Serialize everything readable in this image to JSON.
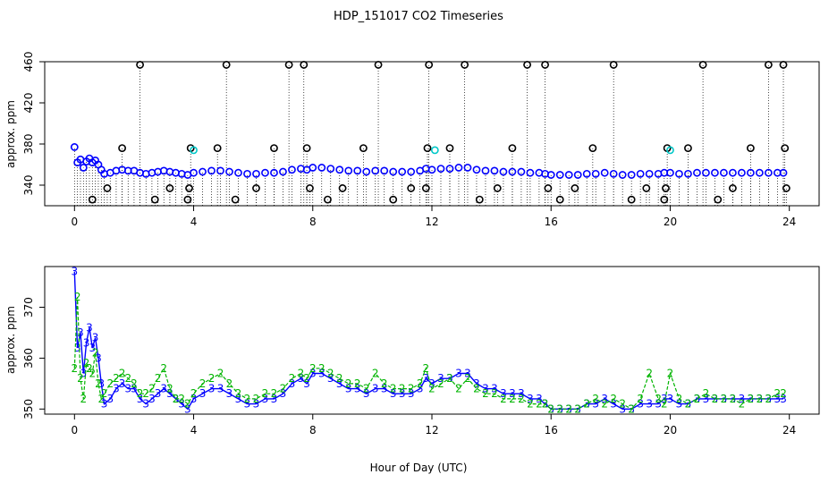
{
  "title": "HDP_151017  CO2 Timeseries",
  "colors": {
    "flagged": "#000000",
    "cyan": "#00c8c8",
    "green": "#00b400",
    "blue": "#0000ff"
  },
  "chart_data": [
    {
      "type": "scatter",
      "title": "HDP_151017  CO2 Timeseries",
      "xlabel": "",
      "ylabel": "approx. ppm",
      "xlim": [
        -1,
        25
      ],
      "ylim": [
        320,
        460
      ],
      "x_ticks": [
        0,
        4,
        8,
        12,
        16,
        20,
        24
      ],
      "y_ticks": [
        340,
        380,
        420,
        460
      ],
      "grid": false,
      "series": [
        {
          "name": "",
          "color": "#0000ff",
          "marker": "circle",
          "x": [
            0.0,
            0.1,
            0.2,
            0.3,
            0.4,
            0.5,
            0.6,
            0.7,
            0.8,
            0.9,
            1.0,
            1.2,
            1.4,
            1.6,
            1.8,
            2.0,
            2.2,
            2.4,
            2.6,
            2.8,
            3.0,
            3.2,
            3.4,
            3.6,
            3.8,
            4.0,
            4.3,
            4.6,
            4.9,
            5.2,
            5.5,
            5.8,
            6.1,
            6.4,
            6.7,
            7.0,
            7.3,
            7.6,
            7.8,
            8.0,
            8.3,
            8.6,
            8.9,
            9.2,
            9.5,
            9.8,
            10.1,
            10.4,
            10.7,
            11.0,
            11.3,
            11.6,
            11.8,
            12.0,
            12.3,
            12.6,
            12.9,
            13.2,
            13.5,
            13.8,
            14.1,
            14.4,
            14.7,
            15.0,
            15.3,
            15.6,
            15.8,
            16.0,
            16.3,
            16.6,
            16.9,
            17.2,
            17.5,
            17.8,
            18.1,
            18.4,
            18.7,
            19.0,
            19.3,
            19.6,
            19.8,
            20.0,
            20.3,
            20.6,
            20.9,
            21.2,
            21.5,
            21.8,
            22.1,
            22.4,
            22.7,
            23.0,
            23.3,
            23.6,
            23.8
          ],
          "y": [
            377,
            362,
            365,
            357,
            363,
            366,
            362,
            364,
            360,
            355,
            351,
            352,
            354,
            355,
            354,
            354,
            352,
            351,
            352,
            353,
            354,
            353,
            352,
            351,
            350,
            352,
            353,
            354,
            354,
            353,
            352,
            351,
            351,
            352,
            352,
            353,
            355,
            356,
            355,
            357,
            357,
            356,
            355,
            354,
            354,
            353,
            354,
            354,
            353,
            353,
            353,
            354,
            356,
            355,
            356,
            356,
            357,
            357,
            355,
            354,
            354,
            353,
            353,
            353,
            352,
            352,
            351,
            350,
            350,
            350,
            350,
            351,
            351,
            352,
            351,
            350,
            350,
            351,
            351,
            351,
            352,
            352,
            351,
            351,
            352,
            352,
            352,
            352,
            352,
            352,
            352,
            352,
            352,
            352,
            352
          ]
        },
        {
          "name": "",
          "color": "#000000",
          "marker": "circle",
          "x": [
            0.6,
            1.1,
            1.6,
            2.2,
            2.7,
            3.2,
            3.8,
            3.85,
            3.9,
            4.8,
            5.1,
            5.4,
            6.1,
            6.7,
            7.2,
            7.7,
            7.8,
            7.9,
            8.5,
            9.0,
            9.7,
            10.2,
            10.7,
            11.3,
            11.8,
            11.85,
            11.9,
            12.6,
            13.1,
            13.6,
            14.2,
            14.7,
            15.2,
            15.8,
            15.9,
            16.3,
            16.8,
            17.4,
            18.1,
            18.7,
            19.2,
            19.8,
            19.85,
            19.9,
            20.6,
            21.1,
            21.6,
            22.1,
            22.7,
            23.3,
            23.8,
            23.85,
            23.9
          ],
          "y": [
            326,
            337,
            376,
            457,
            326,
            337,
            326,
            337,
            376,
            376,
            457,
            326,
            337,
            376,
            457,
            457,
            376,
            337,
            326,
            337,
            376,
            457,
            326,
            337,
            337,
            376,
            457,
            376,
            457,
            326,
            337,
            376,
            457,
            457,
            337,
            326,
            337,
            376,
            457,
            326,
            337,
            326,
            337,
            376,
            376,
            457,
            326,
            337,
            376,
            457,
            457,
            376,
            337
          ]
        },
        {
          "name": "",
          "color": "#00c8c8",
          "marker": "circle",
          "x": [
            4.0,
            12.1,
            20.0
          ],
          "y": [
            374,
            374,
            374
          ]
        }
      ]
    },
    {
      "type": "line",
      "xlabel": "Hour of Day (UTC)",
      "ylabel": "approx. ppm",
      "xlim": [
        -1,
        25
      ],
      "ylim": [
        349,
        378
      ],
      "x_ticks": [
        0,
        4,
        8,
        12,
        16,
        20,
        24
      ],
      "y_ticks": [
        350,
        360,
        370
      ],
      "grid": false,
      "series": [
        {
          "name": "",
          "color": "#0000ff",
          "marker": "3",
          "x": [
            0.0,
            0.1,
            0.2,
            0.3,
            0.4,
            0.5,
            0.6,
            0.7,
            0.8,
            0.9,
            1.0,
            1.2,
            1.4,
            1.6,
            1.8,
            2.0,
            2.2,
            2.4,
            2.6,
            2.8,
            3.0,
            3.2,
            3.4,
            3.6,
            3.8,
            4.0,
            4.3,
            4.6,
            4.9,
            5.2,
            5.5,
            5.8,
            6.1,
            6.4,
            6.7,
            7.0,
            7.3,
            7.6,
            7.8,
            8.0,
            8.3,
            8.6,
            8.9,
            9.2,
            9.5,
            9.8,
            10.1,
            10.4,
            10.7,
            11.0,
            11.3,
            11.6,
            11.8,
            12.0,
            12.3,
            12.6,
            12.9,
            13.2,
            13.5,
            13.8,
            14.1,
            14.4,
            14.7,
            15.0,
            15.3,
            15.6,
            15.8,
            16.0,
            16.3,
            16.6,
            16.9,
            17.2,
            17.5,
            17.8,
            18.1,
            18.4,
            18.7,
            19.0,
            19.3,
            19.6,
            19.8,
            20.0,
            20.3,
            20.6,
            20.9,
            21.2,
            21.5,
            21.8,
            22.1,
            22.4,
            22.7,
            23.0,
            23.3,
            23.6,
            23.8
          ],
          "y": [
            377,
            362,
            365,
            357,
            363,
            366,
            362,
            364,
            360,
            355,
            351,
            352,
            354,
            355,
            354,
            354,
            352,
            351,
            352,
            353,
            354,
            353,
            352,
            351,
            350,
            352,
            353,
            354,
            354,
            353,
            352,
            351,
            351,
            352,
            352,
            353,
            355,
            356,
            355,
            357,
            357,
            356,
            355,
            354,
            354,
            353,
            354,
            354,
            353,
            353,
            353,
            354,
            356,
            355,
            356,
            356,
            357,
            357,
            355,
            354,
            354,
            353,
            353,
            353,
            352,
            352,
            351,
            350,
            350,
            350,
            350,
            351,
            351,
            352,
            351,
            350,
            350,
            351,
            351,
            351,
            352,
            352,
            351,
            351,
            352,
            352,
            352,
            352,
            352,
            352,
            352,
            352,
            352,
            352,
            352
          ]
        },
        {
          "name": "",
          "color": "#00b400",
          "marker": "2",
          "x": [
            0.0,
            0.1,
            0.2,
            0.3,
            0.4,
            0.5,
            0.6,
            0.7,
            0.8,
            0.9,
            1.0,
            1.2,
            1.4,
            1.6,
            1.8,
            2.0,
            2.2,
            2.4,
            2.6,
            2.8,
            3.0,
            3.2,
            3.4,
            3.6,
            3.8,
            4.0,
            4.3,
            4.6,
            4.9,
            5.2,
            5.5,
            5.8,
            6.1,
            6.4,
            6.7,
            7.0,
            7.3,
            7.6,
            7.8,
            8.0,
            8.3,
            8.6,
            8.9,
            9.2,
            9.5,
            9.8,
            10.1,
            10.4,
            10.7,
            11.0,
            11.3,
            11.6,
            11.8,
            12.0,
            12.3,
            12.6,
            12.9,
            13.2,
            13.5,
            13.8,
            14.1,
            14.4,
            14.7,
            15.0,
            15.3,
            15.6,
            15.8,
            16.0,
            16.3,
            16.6,
            16.9,
            17.2,
            17.5,
            17.8,
            18.1,
            18.4,
            18.7,
            19.0,
            19.3,
            19.6,
            19.8,
            20.0,
            20.3,
            20.6,
            20.9,
            21.2,
            21.5,
            21.8,
            22.1,
            22.4,
            22.7,
            23.0,
            23.3,
            23.6,
            23.8
          ],
          "y": [
            358,
            372,
            356,
            352,
            359,
            358,
            357,
            361,
            355,
            352,
            353,
            355,
            356,
            357,
            356,
            355,
            353,
            353,
            354,
            356,
            358,
            354,
            352,
            352,
            351,
            353,
            355,
            356,
            357,
            355,
            353,
            352,
            352,
            353,
            353,
            354,
            356,
            357,
            356,
            358,
            358,
            357,
            356,
            355,
            355,
            354,
            357,
            355,
            354,
            354,
            354,
            355,
            358,
            354,
            355,
            356,
            354,
            356,
            354,
            353,
            353,
            352,
            352,
            352,
            351,
            351,
            351,
            350,
            350,
            350,
            350,
            351,
            352,
            351,
            352,
            351,
            350,
            352,
            357,
            352,
            351,
            357,
            352,
            351,
            352,
            353,
            352,
            352,
            352,
            351,
            352,
            352,
            352,
            353,
            353
          ]
        }
      ]
    }
  ]
}
